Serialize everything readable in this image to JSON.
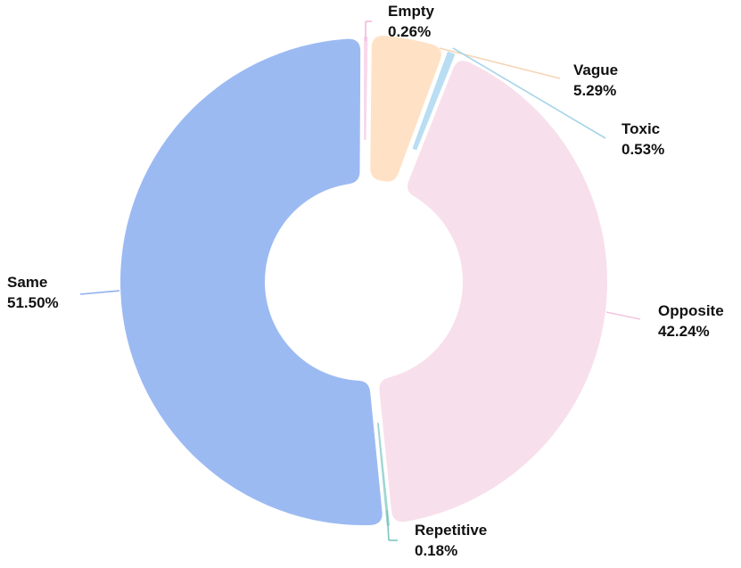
{
  "chart_data": {
    "type": "pie",
    "style": "donut",
    "slices": [
      {
        "key": "empty",
        "label": "Empty",
        "value": 0.26,
        "value_text": "0.26%",
        "color": "#F8D8EA"
      },
      {
        "key": "vague",
        "label": "Vague",
        "value": 5.29,
        "value_text": "5.29%",
        "color": "#FFE2C6"
      },
      {
        "key": "toxic",
        "label": "Toxic",
        "value": 0.53,
        "value_text": "0.53%",
        "color": "#B9DDF2"
      },
      {
        "key": "opposite",
        "label": "Opposite",
        "value": 42.24,
        "value_text": "42.24%",
        "color": "#F8DFEC"
      },
      {
        "key": "repetitive",
        "label": "Repetitive",
        "value": 0.18,
        "value_text": "0.18%",
        "color": "#9FD7D3"
      },
      {
        "key": "same",
        "label": "Same",
        "value": 51.5,
        "value_text": "51.50%",
        "color": "#9CBAF2"
      }
    ],
    "leader_colors": {
      "empty": "#F4B9DC",
      "vague": "#F5D5B4",
      "toxic": "#A7D3EA",
      "opposite": "#F2C6DE",
      "repetitive": "#7CC6BE",
      "same": "#8FB0EE"
    }
  }
}
